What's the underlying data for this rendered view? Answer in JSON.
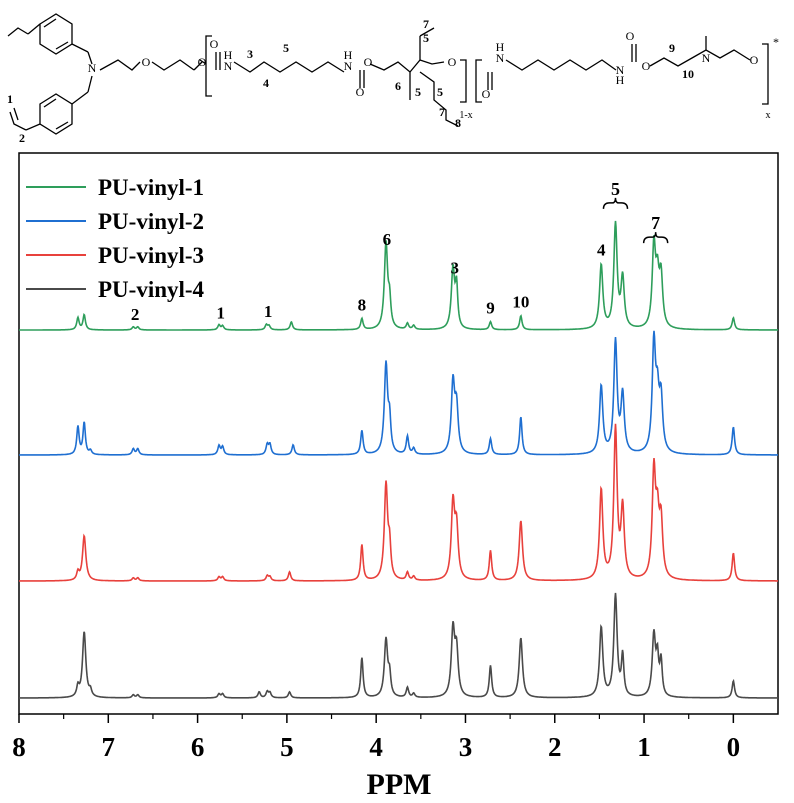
{
  "chart_data": {
    "type": "line",
    "xlabel": "PPM",
    "x_ticks": [
      "8",
      "7",
      "6",
      "5",
      "4",
      "3",
      "2",
      "1",
      "0"
    ],
    "xlim": [
      8.0,
      -0.5
    ],
    "x_reversed": true,
    "grid": false,
    "legend_position": "top-left",
    "series": [
      {
        "name": "PU-vinyl-1",
        "color": "#2e9e5b",
        "peaks": [
          {
            "ppm": 7.34,
            "h": 12
          },
          {
            "ppm": 7.27,
            "h": 15
          },
          {
            "ppm": 6.72,
            "h": 3
          },
          {
            "ppm": 6.67,
            "h": 3
          },
          {
            "ppm": 5.76,
            "h": 5
          },
          {
            "ppm": 5.72,
            "h": 4
          },
          {
            "ppm": 5.23,
            "h": 5
          },
          {
            "ppm": 5.2,
            "h": 4
          },
          {
            "ppm": 4.95,
            "h": 8
          },
          {
            "ppm": 4.16,
            "h": 11
          },
          {
            "ppm": 3.89,
            "h": 86
          },
          {
            "ppm": 3.85,
            "h": 25
          },
          {
            "ppm": 3.65,
            "h": 6
          },
          {
            "ppm": 3.58,
            "h": 4
          },
          {
            "ppm": 3.14,
            "h": 60
          },
          {
            "ppm": 3.1,
            "h": 40
          },
          {
            "ppm": 2.72,
            "h": 8
          },
          {
            "ppm": 2.38,
            "h": 14
          },
          {
            "ppm": 1.48,
            "h": 64
          },
          {
            "ppm": 1.32,
            "h": 104
          },
          {
            "ppm": 1.24,
            "h": 50
          },
          {
            "ppm": 0.89,
            "h": 80
          },
          {
            "ppm": 0.85,
            "h": 45
          },
          {
            "ppm": 0.81,
            "h": 50
          },
          {
            "ppm": 0.0,
            "h": 12
          }
        ]
      },
      {
        "name": "PU-vinyl-2",
        "color": "#1f6fd1",
        "peaks": [
          {
            "ppm": 7.34,
            "h": 28
          },
          {
            "ppm": 7.27,
            "h": 32
          },
          {
            "ppm": 7.2,
            "h": 4
          },
          {
            "ppm": 6.72,
            "h": 6
          },
          {
            "ppm": 6.67,
            "h": 6
          },
          {
            "ppm": 5.76,
            "h": 9
          },
          {
            "ppm": 5.72,
            "h": 8
          },
          {
            "ppm": 5.22,
            "h": 10
          },
          {
            "ppm": 5.19,
            "h": 10
          },
          {
            "ppm": 4.93,
            "h": 10
          },
          {
            "ppm": 4.16,
            "h": 24
          },
          {
            "ppm": 3.89,
            "h": 90
          },
          {
            "ppm": 3.85,
            "h": 30
          },
          {
            "ppm": 3.65,
            "h": 18
          },
          {
            "ppm": 3.58,
            "h": 6
          },
          {
            "ppm": 3.14,
            "h": 70
          },
          {
            "ppm": 3.1,
            "h": 45
          },
          {
            "ppm": 2.72,
            "h": 16
          },
          {
            "ppm": 2.38,
            "h": 38
          },
          {
            "ppm": 1.48,
            "h": 68
          },
          {
            "ppm": 1.32,
            "h": 112
          },
          {
            "ppm": 1.24,
            "h": 58
          },
          {
            "ppm": 0.89,
            "h": 108
          },
          {
            "ppm": 0.85,
            "h": 50
          },
          {
            "ppm": 0.81,
            "h": 52
          },
          {
            "ppm": 0.0,
            "h": 28
          }
        ]
      },
      {
        "name": "PU-vinyl-3",
        "color": "#e8413c",
        "peaks": [
          {
            "ppm": 7.34,
            "h": 8
          },
          {
            "ppm": 7.27,
            "h": 45
          },
          {
            "ppm": 6.72,
            "h": 3
          },
          {
            "ppm": 6.67,
            "h": 3
          },
          {
            "ppm": 5.76,
            "h": 4
          },
          {
            "ppm": 5.72,
            "h": 4
          },
          {
            "ppm": 5.22,
            "h": 5
          },
          {
            "ppm": 5.19,
            "h": 4
          },
          {
            "ppm": 4.97,
            "h": 9
          },
          {
            "ppm": 4.16,
            "h": 36
          },
          {
            "ppm": 3.89,
            "h": 96
          },
          {
            "ppm": 3.85,
            "h": 30
          },
          {
            "ppm": 3.65,
            "h": 8
          },
          {
            "ppm": 3.58,
            "h": 4
          },
          {
            "ppm": 3.14,
            "h": 75
          },
          {
            "ppm": 3.1,
            "h": 50
          },
          {
            "ppm": 2.72,
            "h": 30
          },
          {
            "ppm": 2.38,
            "h": 60
          },
          {
            "ppm": 1.48,
            "h": 90
          },
          {
            "ppm": 1.32,
            "h": 150
          },
          {
            "ppm": 1.24,
            "h": 70
          },
          {
            "ppm": 0.89,
            "h": 105
          },
          {
            "ppm": 0.85,
            "h": 55
          },
          {
            "ppm": 0.81,
            "h": 55
          },
          {
            "ppm": 0.0,
            "h": 28
          }
        ]
      },
      {
        "name": "PU-vinyl-4",
        "color": "#4a4a4a",
        "peaks": [
          {
            "ppm": 7.34,
            "h": 10
          },
          {
            "ppm": 7.27,
            "h": 66
          },
          {
            "ppm": 7.2,
            "h": 6
          },
          {
            "ppm": 6.72,
            "h": 3
          },
          {
            "ppm": 6.67,
            "h": 3
          },
          {
            "ppm": 5.76,
            "h": 4
          },
          {
            "ppm": 5.72,
            "h": 4
          },
          {
            "ppm": 5.31,
            "h": 6
          },
          {
            "ppm": 5.22,
            "h": 6
          },
          {
            "ppm": 5.19,
            "h": 5
          },
          {
            "ppm": 4.97,
            "h": 6
          },
          {
            "ppm": 4.16,
            "h": 40
          },
          {
            "ppm": 3.89,
            "h": 58
          },
          {
            "ppm": 3.85,
            "h": 20
          },
          {
            "ppm": 3.65,
            "h": 10
          },
          {
            "ppm": 3.58,
            "h": 4
          },
          {
            "ppm": 3.14,
            "h": 66
          },
          {
            "ppm": 3.1,
            "h": 45
          },
          {
            "ppm": 2.72,
            "h": 32
          },
          {
            "ppm": 2.38,
            "h": 60
          },
          {
            "ppm": 1.48,
            "h": 70
          },
          {
            "ppm": 1.32,
            "h": 102
          },
          {
            "ppm": 1.24,
            "h": 40
          },
          {
            "ppm": 0.89,
            "h": 62
          },
          {
            "ppm": 0.85,
            "h": 35
          },
          {
            "ppm": 0.81,
            "h": 35
          },
          {
            "ppm": 0.0,
            "h": 17
          }
        ]
      }
    ],
    "annotations": [
      {
        "label": "2",
        "ppm": 6.7
      },
      {
        "label": "1",
        "ppm": 5.74
      },
      {
        "label": "1",
        "ppm": 5.21
      },
      {
        "label": "8",
        "ppm": 4.16
      },
      {
        "label": "6",
        "ppm": 3.88
      },
      {
        "label": "3",
        "ppm": 3.12
      },
      {
        "label": "9",
        "ppm": 2.72
      },
      {
        "label": "10",
        "ppm": 2.38
      },
      {
        "label": "4",
        "ppm": 1.48
      },
      {
        "label": "5",
        "ppm": 1.32,
        "brace": true
      },
      {
        "label": "7",
        "ppm": 0.87,
        "brace": true
      }
    ]
  },
  "structure": {
    "atom_labels": {
      "N": "N",
      "O": "O",
      "H": "H",
      "star": "*",
      "x": "x",
      "one_minus_x": "1-x"
    },
    "numbers": [
      {
        "label": "1"
      },
      {
        "label": "2"
      },
      {
        "label": "3"
      },
      {
        "label": "4"
      },
      {
        "label": "5"
      },
      {
        "label": "6"
      },
      {
        "label": "7"
      },
      {
        "label": "5"
      },
      {
        "label": "5"
      },
      {
        "label": "5"
      },
      {
        "label": "7"
      },
      {
        "label": "8"
      },
      {
        "label": "9"
      },
      {
        "label": "10"
      }
    ]
  }
}
